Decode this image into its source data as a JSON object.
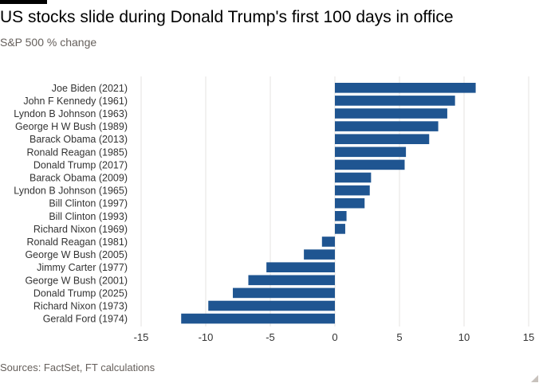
{
  "header": {
    "title": "US stocks slide during Donald Trump's first 100 days in office",
    "subtitle": "S&P 500 % change"
  },
  "footer": {
    "source": "Sources: FactSet, FT calculations"
  },
  "colors": {
    "bar": "#1f5591",
    "grid": "#e6e3e0",
    "label": "#333333"
  },
  "chart_data": {
    "type": "bar",
    "orientation": "horizontal",
    "title": "US stocks slide during Donald Trump's first 100 days in office",
    "subtitle": "S&P 500 % change",
    "categories": [
      "Joe Biden (2021)",
      "John F Kennedy (1961)",
      "Lyndon B Johnson (1963)",
      "George H W Bush (1989)",
      "Barack Obama (2013)",
      "Ronald Reagan (1985)",
      "Donald Trump (2017)",
      "Barack Obama (2009)",
      "Lyndon B Johnson (1965)",
      "Bill Clinton (1997)",
      "Bill Clinton (1993)",
      "Richard Nixon (1969)",
      "Ronald Reagan (1981)",
      "George W Bush (2005)",
      "Jimmy Carter (1977)",
      "George W Bush (2001)",
      "Donald Trump (2025)",
      "Richard Nixon (1973)",
      "Gerald Ford (1974)"
    ],
    "values": [
      10.9,
      9.3,
      8.7,
      8.0,
      7.3,
      5.5,
      5.4,
      2.8,
      2.7,
      2.3,
      0.9,
      0.8,
      -1.0,
      -2.4,
      -5.3,
      -6.7,
      -7.9,
      -9.8,
      -11.9
    ],
    "xlim": [
      -15,
      15
    ],
    "xticks": [
      -15,
      -10,
      -5,
      0,
      5,
      10,
      15
    ],
    "xticklabels": [
      "-15",
      "-10",
      "-5",
      "0",
      "5",
      "10",
      "15"
    ],
    "xlabel": "",
    "ylabel": "",
    "grid": true,
    "legend": false
  }
}
